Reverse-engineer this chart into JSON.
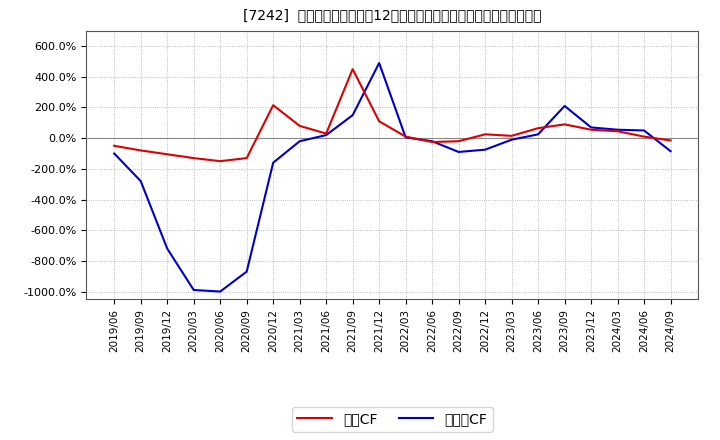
{
  "title": "[7242]  キャッシュフローの12か月移動合計の対前年同期増減率の推移",
  "background_color": "#ffffff",
  "plot_bg_color": "#ffffff",
  "grid_color": "#aaaaaa",
  "legend_labels": [
    "営業CF",
    "フリーCF"
  ],
  "line_colors": [
    "#dd0000",
    "#0000cc"
  ],
  "dates": [
    "2019/06",
    "2019/09",
    "2019/12",
    "2020/03",
    "2020/06",
    "2020/09",
    "2020/12",
    "2021/03",
    "2021/06",
    "2021/09",
    "2021/12",
    "2022/03",
    "2022/06",
    "2022/09",
    "2022/12",
    "2023/03",
    "2023/06",
    "2023/09",
    "2023/12",
    "2024/03",
    "2024/06",
    "2024/09"
  ],
  "eigyo_cf": [
    -50,
    -80,
    -105,
    -130,
    -150,
    -130,
    215,
    80,
    30,
    450,
    110,
    10,
    -25,
    -20,
    25,
    15,
    65,
    90,
    55,
    45,
    10,
    -15
  ],
  "free_cf": [
    -100,
    -280,
    -720,
    -990,
    -1000,
    -870,
    -160,
    -20,
    20,
    150,
    490,
    5,
    -20,
    -90,
    -75,
    -10,
    25,
    210,
    70,
    55,
    50,
    -85
  ],
  "ylim": [
    -1050,
    700
  ],
  "yticks": [
    -1000,
    -800,
    -600,
    -400,
    -200,
    0,
    200,
    400,
    600
  ],
  "title_fontsize": 10
}
